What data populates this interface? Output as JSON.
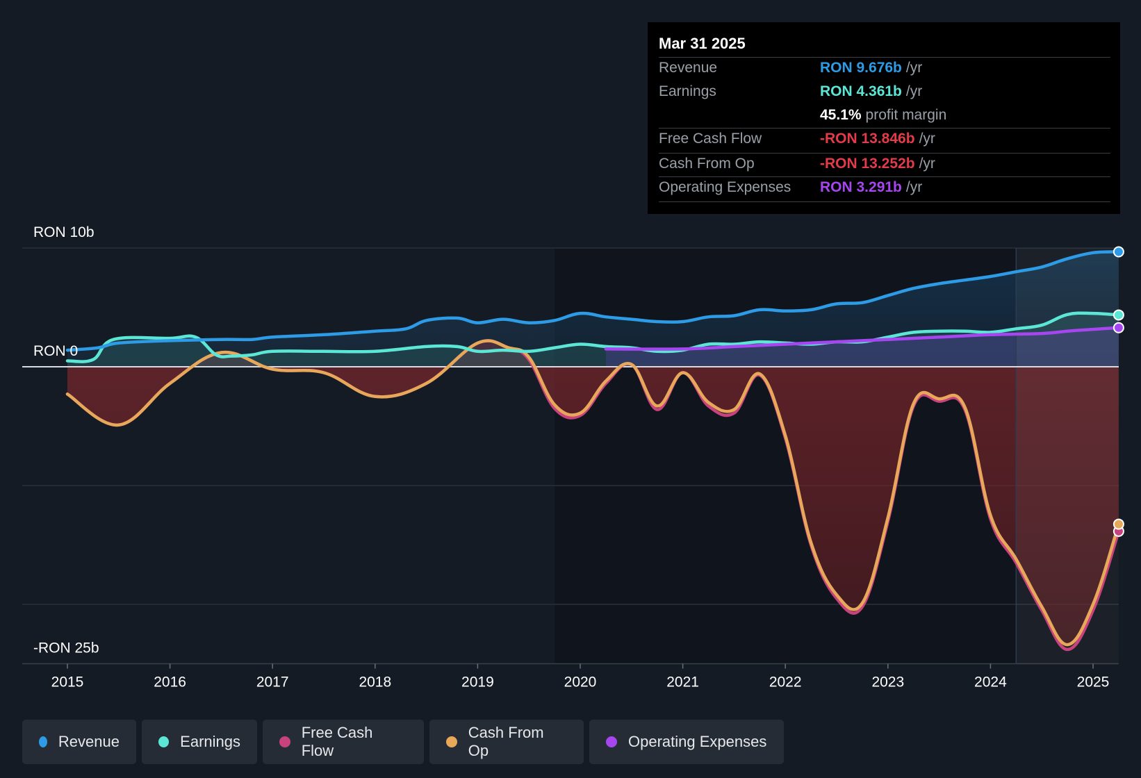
{
  "tooltip": {
    "date": "Mar 31 2025",
    "rows": [
      {
        "label": "Revenue",
        "value": "RON 9.676b",
        "unit": "/yr",
        "color": "#2d9be6"
      },
      {
        "label": "Earnings",
        "value": "RON 4.361b",
        "unit": "/yr",
        "color": "#5ce6d6"
      },
      {
        "label": "",
        "value": "45.1%",
        "unit": "profit margin",
        "color": "#ffffff"
      },
      {
        "label": "Free Cash Flow",
        "value": "-RON 13.846b",
        "unit": "/yr",
        "color": "#e23b4a"
      },
      {
        "label": "Cash From Op",
        "value": "-RON 13.252b",
        "unit": "/yr",
        "color": "#e23b4a"
      },
      {
        "label": "Operating Expenses",
        "value": "RON 3.291b",
        "unit": "/yr",
        "color": "#a646f0"
      }
    ]
  },
  "legend": [
    {
      "label": "Revenue",
      "color": "#2d9be6"
    },
    {
      "label": "Earnings",
      "color": "#5ce6d6"
    },
    {
      "label": "Free Cash Flow",
      "color": "#c8437d"
    },
    {
      "label": "Cash From Op",
      "color": "#e8a85a"
    },
    {
      "label": "Operating Expenses",
      "color": "#a646f0"
    }
  ],
  "chart_data": {
    "type": "line",
    "title": "",
    "y_unit": "RON (billions)",
    "ylim": [
      -25,
      10
    ],
    "y_tick_labels": [
      {
        "value": 10,
        "label": "RON 10b"
      },
      {
        "value": 0,
        "label": "RON 0"
      },
      {
        "value": -25,
        "label": "-RON 25b"
      }
    ],
    "x_ticks": [
      2015,
      2016,
      2017,
      2018,
      2019,
      2020,
      2021,
      2022,
      2023,
      2024,
      2025
    ],
    "xlim": [
      2014.6,
      2025.25
    ],
    "forecast_start": 2024.25,
    "series": [
      {
        "name": "Revenue",
        "color": "#2d9be6",
        "fill": true,
        "x": [
          2015,
          2015.3,
          2015.5,
          2016,
          2016.5,
          2016.8,
          2017,
          2017.5,
          2018,
          2018.3,
          2018.5,
          2018.8,
          2019,
          2019.25,
          2019.5,
          2019.75,
          2020,
          2020.25,
          2020.5,
          2020.75,
          2021,
          2021.25,
          2021.5,
          2021.75,
          2022,
          2022.25,
          2022.5,
          2022.75,
          2023,
          2023.25,
          2023.5,
          2023.75,
          2024,
          2024.25,
          2024.5,
          2024.75,
          2025,
          2025.25
        ],
        "values": [
          1.4,
          1.6,
          2.0,
          2.2,
          2.3,
          2.3,
          2.5,
          2.7,
          3.0,
          3.2,
          3.9,
          4.1,
          3.7,
          4.0,
          3.7,
          3.9,
          4.5,
          4.2,
          4.0,
          3.8,
          3.8,
          4.2,
          4.3,
          4.8,
          4.7,
          4.8,
          5.3,
          5.4,
          6.0,
          6.6,
          7.0,
          7.3,
          7.6,
          8.0,
          8.4,
          9.1,
          9.6,
          9.68
        ]
      },
      {
        "name": "Earnings",
        "color": "#5ce6d6",
        "fill": true,
        "x": [
          2015,
          2015.25,
          2015.45,
          2016,
          2016.25,
          2016.45,
          2016.6,
          2016.8,
          2017,
          2017.5,
          2018,
          2018.5,
          2018.8,
          2019,
          2019.25,
          2019.5,
          2019.75,
          2020,
          2020.25,
          2020.5,
          2020.75,
          2021,
          2021.25,
          2021.5,
          2021.75,
          2022,
          2022.25,
          2022.5,
          2022.75,
          2023,
          2023.25,
          2023.5,
          2023.75,
          2024,
          2024.25,
          2024.5,
          2024.75,
          2025,
          2025.25
        ],
        "values": [
          0.5,
          0.6,
          2.3,
          2.4,
          2.5,
          1.0,
          0.9,
          1.0,
          1.3,
          1.3,
          1.3,
          1.7,
          1.7,
          1.3,
          1.4,
          1.3,
          1.6,
          1.9,
          1.7,
          1.6,
          1.3,
          1.4,
          1.9,
          1.9,
          2.1,
          2.0,
          1.9,
          2.1,
          2.1,
          2.5,
          2.9,
          3.0,
          3.0,
          2.9,
          3.2,
          3.5,
          4.4,
          4.5,
          4.36
        ]
      },
      {
        "name": "Free Cash Flow",
        "color": "#c8437d",
        "fill": false,
        "x": [
          2015,
          2015.5,
          2016,
          2016.5,
          2017,
          2017.5,
          2018,
          2018.5,
          2019,
          2019.3,
          2019.5,
          2019.75,
          2020,
          2020.25,
          2020.5,
          2020.75,
          2021,
          2021.25,
          2021.5,
          2021.75,
          2022,
          2022.25,
          2022.5,
          2022.75,
          2023,
          2023.25,
          2023.5,
          2023.75,
          2024,
          2024.25,
          2024.5,
          2024.75,
          2025,
          2025.25
        ],
        "values": [
          -2.3,
          -4.9,
          -1.4,
          1.2,
          -0.2,
          -0.5,
          -2.5,
          -1.4,
          2.0,
          1.6,
          0.6,
          -3.5,
          -4.1,
          -1.4,
          0.2,
          -3.6,
          -0.5,
          -3.3,
          -3.9,
          -0.7,
          -6.0,
          -15.0,
          -19.5,
          -20.2,
          -13.0,
          -3.3,
          -2.9,
          -3.6,
          -12.8,
          -16.5,
          -20.5,
          -23.8,
          -20.5,
          -13.85
        ]
      },
      {
        "name": "Cash From Op",
        "color": "#e8a85a",
        "fill": true,
        "x": [
          2015,
          2015.5,
          2016,
          2016.5,
          2017,
          2017.5,
          2018,
          2018.5,
          2019,
          2019.3,
          2019.5,
          2019.75,
          2020,
          2020.25,
          2020.5,
          2020.75,
          2021,
          2021.25,
          2021.5,
          2021.75,
          2022,
          2022.25,
          2022.5,
          2022.75,
          2023,
          2023.25,
          2023.5,
          2023.75,
          2024,
          2024.25,
          2024.5,
          2024.75,
          2025,
          2025.25
        ],
        "values": [
          -2.3,
          -4.9,
          -1.4,
          1.2,
          -0.2,
          -0.5,
          -2.5,
          -1.4,
          2.0,
          1.6,
          0.8,
          -3.2,
          -3.9,
          -1.2,
          0.2,
          -3.3,
          -0.5,
          -3.0,
          -3.6,
          -0.6,
          -5.8,
          -14.8,
          -19.2,
          -19.9,
          -12.7,
          -3.1,
          -2.7,
          -3.4,
          -12.5,
          -16.2,
          -20.2,
          -23.4,
          -20.0,
          -13.25
        ]
      },
      {
        "name": "Operating Expenses",
        "color": "#a646f0",
        "fill": true,
        "x": [
          2020.25,
          2021,
          2021.5,
          2022,
          2022.5,
          2023,
          2023.5,
          2024,
          2024.5,
          2024.75,
          2025,
          2025.25
        ],
        "values": [
          1.5,
          1.5,
          1.7,
          1.9,
          2.1,
          2.3,
          2.5,
          2.7,
          2.8,
          3.0,
          3.15,
          3.29
        ]
      }
    ]
  }
}
